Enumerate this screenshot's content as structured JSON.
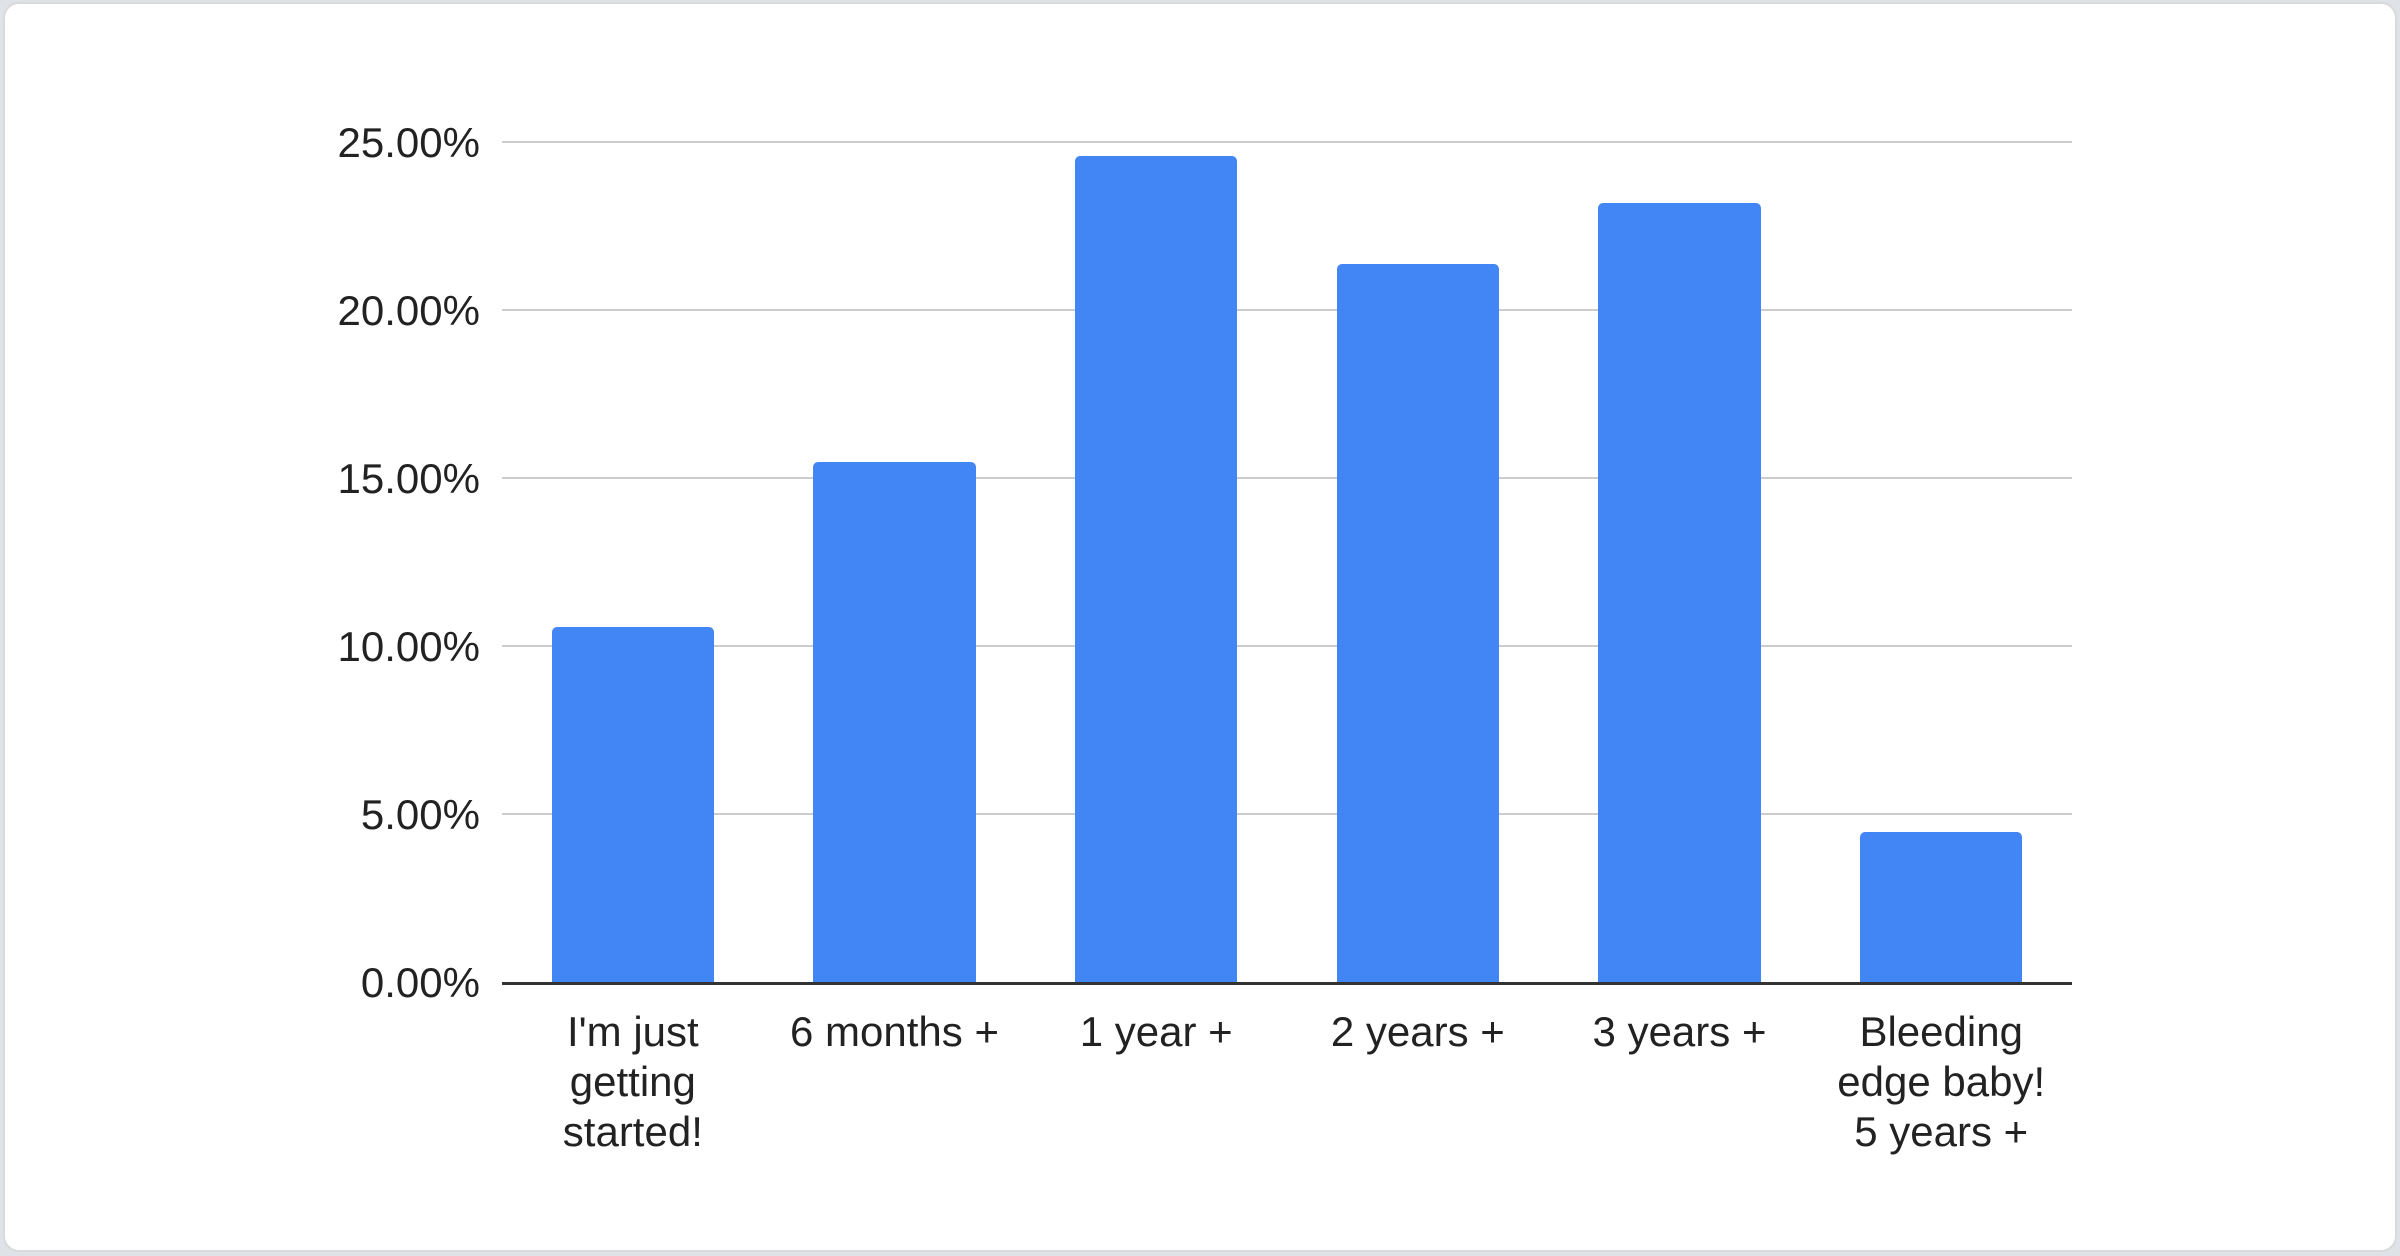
{
  "page": {
    "background_color": "#dfe2e6",
    "card_background": "#ffffff",
    "card_border_color": "#d8dadd"
  },
  "chart_data": {
    "type": "bar",
    "title": "",
    "xlabel": "",
    "ylabel": "",
    "categories": [
      "I'm just\ngetting\nstarted!",
      "6 months +",
      "1 year +",
      "2 years +",
      "3 years +",
      "Bleeding\nedge baby!\n5 years +"
    ],
    "values": [
      10.6,
      15.5,
      24.6,
      21.4,
      23.2,
      4.5
    ],
    "value_unit": "%",
    "y_ticks": [
      0,
      5,
      10,
      15,
      20,
      25
    ],
    "y_tick_labels": [
      "0.00%",
      "5.00%",
      "10.00%",
      "15.00%",
      "20.00%",
      "25.00%"
    ],
    "ylim": [
      0,
      25
    ],
    "grid": true,
    "legend": "none",
    "bar_color": "#4285f4",
    "gridline_color": "#cccccc",
    "axis_line_color": "#333333",
    "label_color": "#222222"
  }
}
